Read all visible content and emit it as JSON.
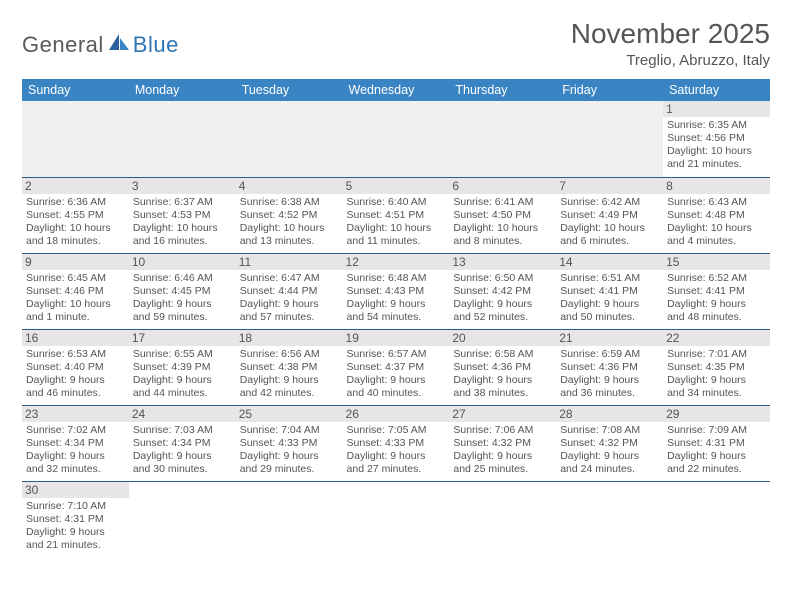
{
  "logo": {
    "text1": "General",
    "text2": "Blue"
  },
  "title": "November 2025",
  "location": "Treglio, Abruzzo, Italy",
  "colors": {
    "header_bg": "#3a84c4",
    "header_fg": "#ffffff",
    "daynum_bg": "#e6e6e6",
    "rule": "#2e5c8a",
    "text": "#555555"
  },
  "weekdays": [
    "Sunday",
    "Monday",
    "Tuesday",
    "Wednesday",
    "Thursday",
    "Friday",
    "Saturday"
  ],
  "leading_blanks": 6,
  "days": [
    {
      "n": "1",
      "sunrise": "Sunrise: 6:35 AM",
      "sunset": "Sunset: 4:56 PM",
      "day1": "Daylight: 10 hours",
      "day2": "and 21 minutes."
    },
    {
      "n": "2",
      "sunrise": "Sunrise: 6:36 AM",
      "sunset": "Sunset: 4:55 PM",
      "day1": "Daylight: 10 hours",
      "day2": "and 18 minutes."
    },
    {
      "n": "3",
      "sunrise": "Sunrise: 6:37 AM",
      "sunset": "Sunset: 4:53 PM",
      "day1": "Daylight: 10 hours",
      "day2": "and 16 minutes."
    },
    {
      "n": "4",
      "sunrise": "Sunrise: 6:38 AM",
      "sunset": "Sunset: 4:52 PM",
      "day1": "Daylight: 10 hours",
      "day2": "and 13 minutes."
    },
    {
      "n": "5",
      "sunrise": "Sunrise: 6:40 AM",
      "sunset": "Sunset: 4:51 PM",
      "day1": "Daylight: 10 hours",
      "day2": "and 11 minutes."
    },
    {
      "n": "6",
      "sunrise": "Sunrise: 6:41 AM",
      "sunset": "Sunset: 4:50 PM",
      "day1": "Daylight: 10 hours",
      "day2": "and 8 minutes."
    },
    {
      "n": "7",
      "sunrise": "Sunrise: 6:42 AM",
      "sunset": "Sunset: 4:49 PM",
      "day1": "Daylight: 10 hours",
      "day2": "and 6 minutes."
    },
    {
      "n": "8",
      "sunrise": "Sunrise: 6:43 AM",
      "sunset": "Sunset: 4:48 PM",
      "day1": "Daylight: 10 hours",
      "day2": "and 4 minutes."
    },
    {
      "n": "9",
      "sunrise": "Sunrise: 6:45 AM",
      "sunset": "Sunset: 4:46 PM",
      "day1": "Daylight: 10 hours",
      "day2": "and 1 minute."
    },
    {
      "n": "10",
      "sunrise": "Sunrise: 6:46 AM",
      "sunset": "Sunset: 4:45 PM",
      "day1": "Daylight: 9 hours",
      "day2": "and 59 minutes."
    },
    {
      "n": "11",
      "sunrise": "Sunrise: 6:47 AM",
      "sunset": "Sunset: 4:44 PM",
      "day1": "Daylight: 9 hours",
      "day2": "and 57 minutes."
    },
    {
      "n": "12",
      "sunrise": "Sunrise: 6:48 AM",
      "sunset": "Sunset: 4:43 PM",
      "day1": "Daylight: 9 hours",
      "day2": "and 54 minutes."
    },
    {
      "n": "13",
      "sunrise": "Sunrise: 6:50 AM",
      "sunset": "Sunset: 4:42 PM",
      "day1": "Daylight: 9 hours",
      "day2": "and 52 minutes."
    },
    {
      "n": "14",
      "sunrise": "Sunrise: 6:51 AM",
      "sunset": "Sunset: 4:41 PM",
      "day1": "Daylight: 9 hours",
      "day2": "and 50 minutes."
    },
    {
      "n": "15",
      "sunrise": "Sunrise: 6:52 AM",
      "sunset": "Sunset: 4:41 PM",
      "day1": "Daylight: 9 hours",
      "day2": "and 48 minutes."
    },
    {
      "n": "16",
      "sunrise": "Sunrise: 6:53 AM",
      "sunset": "Sunset: 4:40 PM",
      "day1": "Daylight: 9 hours",
      "day2": "and 46 minutes."
    },
    {
      "n": "17",
      "sunrise": "Sunrise: 6:55 AM",
      "sunset": "Sunset: 4:39 PM",
      "day1": "Daylight: 9 hours",
      "day2": "and 44 minutes."
    },
    {
      "n": "18",
      "sunrise": "Sunrise: 6:56 AM",
      "sunset": "Sunset: 4:38 PM",
      "day1": "Daylight: 9 hours",
      "day2": "and 42 minutes."
    },
    {
      "n": "19",
      "sunrise": "Sunrise: 6:57 AM",
      "sunset": "Sunset: 4:37 PM",
      "day1": "Daylight: 9 hours",
      "day2": "and 40 minutes."
    },
    {
      "n": "20",
      "sunrise": "Sunrise: 6:58 AM",
      "sunset": "Sunset: 4:36 PM",
      "day1": "Daylight: 9 hours",
      "day2": "and 38 minutes."
    },
    {
      "n": "21",
      "sunrise": "Sunrise: 6:59 AM",
      "sunset": "Sunset: 4:36 PM",
      "day1": "Daylight: 9 hours",
      "day2": "and 36 minutes."
    },
    {
      "n": "22",
      "sunrise": "Sunrise: 7:01 AM",
      "sunset": "Sunset: 4:35 PM",
      "day1": "Daylight: 9 hours",
      "day2": "and 34 minutes."
    },
    {
      "n": "23",
      "sunrise": "Sunrise: 7:02 AM",
      "sunset": "Sunset: 4:34 PM",
      "day1": "Daylight: 9 hours",
      "day2": "and 32 minutes."
    },
    {
      "n": "24",
      "sunrise": "Sunrise: 7:03 AM",
      "sunset": "Sunset: 4:34 PM",
      "day1": "Daylight: 9 hours",
      "day2": "and 30 minutes."
    },
    {
      "n": "25",
      "sunrise": "Sunrise: 7:04 AM",
      "sunset": "Sunset: 4:33 PM",
      "day1": "Daylight: 9 hours",
      "day2": "and 29 minutes."
    },
    {
      "n": "26",
      "sunrise": "Sunrise: 7:05 AM",
      "sunset": "Sunset: 4:33 PM",
      "day1": "Daylight: 9 hours",
      "day2": "and 27 minutes."
    },
    {
      "n": "27",
      "sunrise": "Sunrise: 7:06 AM",
      "sunset": "Sunset: 4:32 PM",
      "day1": "Daylight: 9 hours",
      "day2": "and 25 minutes."
    },
    {
      "n": "28",
      "sunrise": "Sunrise: 7:08 AM",
      "sunset": "Sunset: 4:32 PM",
      "day1": "Daylight: 9 hours",
      "day2": "and 24 minutes."
    },
    {
      "n": "29",
      "sunrise": "Sunrise: 7:09 AM",
      "sunset": "Sunset: 4:31 PM",
      "day1": "Daylight: 9 hours",
      "day2": "and 22 minutes."
    },
    {
      "n": "30",
      "sunrise": "Sunrise: 7:10 AM",
      "sunset": "Sunset: 4:31 PM",
      "day1": "Daylight: 9 hours",
      "day2": "and 21 minutes."
    }
  ]
}
